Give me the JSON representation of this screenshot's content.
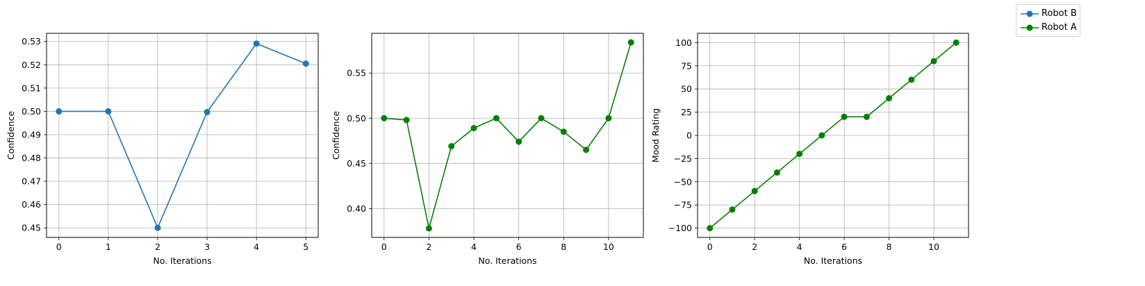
{
  "chart_data": [
    {
      "type": "line",
      "xlabel": "No. Iterations",
      "ylabel": "Confidence",
      "xlim": [
        -0.25,
        5.25
      ],
      "ylim": [
        0.4459,
        0.5335
      ],
      "xticks": [
        0,
        1,
        2,
        3,
        4,
        5
      ],
      "xtick_labels": [
        "0",
        "1",
        "2",
        "3",
        "4",
        "5"
      ],
      "yticks": [
        0.45,
        0.46,
        0.47,
        0.48,
        0.49,
        0.5,
        0.51,
        0.52,
        0.53
      ],
      "ytick_labels": [
        "0.45",
        "0.46",
        "0.47",
        "0.48",
        "0.49",
        "0.50",
        "0.51",
        "0.52",
        "0.53"
      ],
      "grid": true,
      "color": "#1f77b4",
      "series": [
        {
          "name": "Robot B",
          "x": [
            0,
            1,
            2,
            3,
            4,
            5
          ],
          "values": [
            0.5,
            0.5,
            0.45,
            0.4997,
            0.5291,
            0.5205
          ]
        }
      ]
    },
    {
      "type": "line",
      "xlabel": "No. Iterations",
      "ylabel": "Confidence",
      "xlim": [
        -0.55,
        11.55
      ],
      "ylim": [
        0.368,
        0.594
      ],
      "xticks": [
        0,
        2,
        4,
        6,
        8,
        10
      ],
      "xtick_labels": [
        "0",
        "2",
        "4",
        "6",
        "8",
        "10"
      ],
      "yticks": [
        0.4,
        0.45,
        0.5,
        0.55
      ],
      "ytick_labels": [
        "0.40",
        "0.45",
        "0.50",
        "0.55"
      ],
      "grid": true,
      "color": "#008000",
      "series": [
        {
          "name": "Robot A",
          "x": [
            0,
            1,
            2,
            3,
            4,
            5,
            6,
            7,
            8,
            9,
            10,
            11
          ],
          "values": [
            0.5,
            0.498,
            0.378,
            0.469,
            0.489,
            0.5,
            0.474,
            0.5,
            0.485,
            0.465,
            0.5,
            0.584
          ]
        }
      ]
    },
    {
      "type": "line",
      "xlabel": "No. Iterations",
      "ylabel": "Mood Rating",
      "xlim": [
        -0.55,
        11.55
      ],
      "ylim": [
        -110,
        110
      ],
      "xticks": [
        0,
        2,
        4,
        6,
        8,
        10
      ],
      "xtick_labels": [
        "0",
        "2",
        "4",
        "6",
        "8",
        "10"
      ],
      "yticks": [
        -100,
        -75,
        -50,
        -25,
        0,
        25,
        50,
        75,
        100
      ],
      "ytick_labels": [
        "−100",
        "−75",
        "−50",
        "−25",
        "0",
        "25",
        "50",
        "75",
        "100"
      ],
      "grid": true,
      "color": "#008000",
      "series": [
        {
          "name": "Robot A",
          "x": [
            0,
            1,
            2,
            3,
            4,
            5,
            6,
            7,
            8,
            9,
            10,
            11
          ],
          "values": [
            -100,
            -80,
            -60,
            -40,
            -20,
            0,
            20,
            20,
            40,
            60,
            80,
            100
          ]
        }
      ]
    }
  ],
  "legend": {
    "placement": "top-right",
    "entries": [
      {
        "label": "Robot B",
        "color": "#1f77b4"
      },
      {
        "label": "Robot A",
        "color": "#008000"
      }
    ]
  }
}
